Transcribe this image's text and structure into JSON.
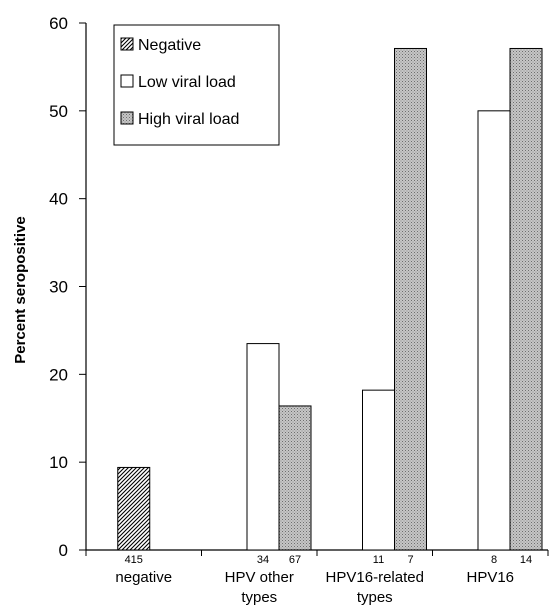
{
  "chart_data": {
    "type": "bar",
    "ylabel": "Percent seropositive",
    "xlabel": "",
    "ylim": [
      0,
      60
    ],
    "yticks": [
      "0",
      "10",
      "20",
      "30",
      "40",
      "50",
      "60"
    ],
    "grid": false,
    "legend_position": "top-left",
    "categories": [
      {
        "label_lines": [
          "negative"
        ],
        "counts": [
          "415"
        ]
      },
      {
        "label_lines": [
          "HPV other",
          "types"
        ],
        "counts": [
          "34",
          "67"
        ]
      },
      {
        "label_lines": [
          "HPV16-related",
          "types"
        ],
        "counts": [
          "11",
          "7"
        ]
      },
      {
        "label_lines": [
          "HPV16"
        ],
        "counts": [
          "8",
          "14"
        ]
      }
    ],
    "series": [
      {
        "name": "Negative",
        "pattern": "hatch",
        "values": [
          9.4,
          null,
          null,
          null
        ]
      },
      {
        "name": "Low viral load",
        "pattern": "white",
        "values": [
          null,
          23.5,
          18.2,
          50
        ]
      },
      {
        "name": "High viral load",
        "pattern": "dots",
        "values": [
          null,
          16.4,
          57.1,
          57.1
        ]
      }
    ]
  }
}
